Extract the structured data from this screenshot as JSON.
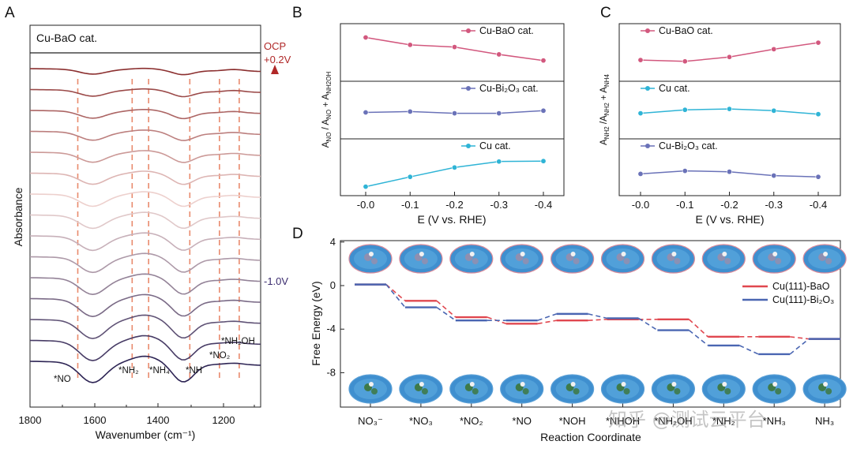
{
  "panels": {
    "A": {
      "letter": "A",
      "box_label": "Cu-BaO cat.",
      "xlabel": "Wavenumber (cm⁻¹)",
      "ylabel": "Absorbance",
      "xticks": [
        "1800",
        "1600",
        "1400",
        "1200"
      ],
      "potential_top": "OCP",
      "potential_mid": "+0.2V",
      "potential_bottom": "-1.0V",
      "annotations": [
        "*NO",
        "*NH₂",
        "*NH₄",
        "*NH",
        "*NO₂",
        "*NH₂OH"
      ],
      "colors": {
        "top": "#8b2f2f",
        "bottom": "#2d2454",
        "dashed": "#e98a6d",
        "arrow_top": "#b02828",
        "arrow_bottom": "#3a2b6e"
      }
    },
    "B": {
      "letter": "B",
      "ylabel": "A_NO / A_NO + A_NH2OH",
      "xlabel": "E (V vs. RHE)",
      "xticks": [
        "-0.0",
        "-0.1",
        "-0.2",
        "-0.3",
        "-0.4"
      ]
    },
    "C": {
      "letter": "C",
      "ylabel": "A_NH2 / A_NH2 + A_NH4",
      "xlabel": "E (V vs. RHE)",
      "xticks": [
        "-0.0",
        "-0.1",
        "-0.2",
        "-0.3",
        "-0.4"
      ]
    },
    "D": {
      "letter": "D",
      "ylabel": "Free Energy (eV)",
      "xlabel": "Reaction Coordinate",
      "yticks": [
        "4",
        "0",
        "-4",
        "-8"
      ],
      "steps": [
        "NO₃⁻",
        "*NO₃",
        "*NO₂",
        "*NO",
        "*NOH",
        "*NHOH",
        "*NH₂OH",
        "*NH₂",
        "*NH₃",
        "NH₃"
      ]
    }
  },
  "watermark": "知乎 @测试云平台",
  "chart_data": [
    {
      "type": "line",
      "title": "",
      "xlabel": "E (V vs. RHE)",
      "ylabel": "A_NO / A_NO + A_NH2OH",
      "x": [
        0.0,
        -0.1,
        -0.2,
        -0.3,
        -0.4
      ],
      "series": [
        {
          "name": "Cu-BaO cat.",
          "color": "#d2587e",
          "values": [
            0.9,
            0.73,
            0.68,
            0.51,
            0.37
          ]
        },
        {
          "name": "Cu-Bi₂O₃ cat.",
          "color": "#6a72b8",
          "values": [
            0.5,
            0.52,
            0.48,
            0.48,
            0.54
          ]
        },
        {
          "name": "Cu cat.",
          "color": "#2fb4d6",
          "values": [
            0.1,
            0.33,
            0.55,
            0.69,
            0.7
          ]
        }
      ]
    },
    {
      "type": "line",
      "title": "",
      "xlabel": "E (V vs. RHE)",
      "ylabel": "A_NH2 / A_NH2 + A_NH4",
      "x": [
        0.0,
        -0.1,
        -0.2,
        -0.3,
        -0.4
      ],
      "series": [
        {
          "name": "Cu-BaO cat.",
          "color": "#d2587e",
          "values": [
            0.38,
            0.35,
            0.45,
            0.63,
            0.78
          ]
        },
        {
          "name": "Cu cat.",
          "color": "#2fb4d6",
          "values": [
            0.48,
            0.56,
            0.58,
            0.54,
            0.46
          ]
        },
        {
          "name": "Cu-Bi₂O₃ cat.",
          "color": "#6a72b8",
          "values": [
            0.4,
            0.47,
            0.45,
            0.36,
            0.33
          ]
        }
      ]
    },
    {
      "type": "line",
      "title": "",
      "xlabel": "Reaction Coordinate",
      "ylabel": "Free Energy (eV)",
      "ylim": [
        -10,
        4
      ],
      "categories": [
        "NO₃⁻",
        "*NO₃",
        "*NO₂",
        "*NO",
        "*NOH",
        "*NHOH",
        "*NH₂OH",
        "*NH₂",
        "*NH₃",
        "NH₃"
      ],
      "legend_position": "right",
      "series": [
        {
          "name": "Cu(111)-BaO",
          "color": "#e0474f",
          "values": [
            0.1,
            -1.4,
            -2.9,
            -3.5,
            -3.2,
            -3.1,
            -3.1,
            -4.7,
            -4.7,
            -4.9
          ]
        },
        {
          "name": "Cu(111)-Bi₂O₃",
          "color": "#4a66b2",
          "values": [
            0.1,
            -2.0,
            -3.2,
            -3.2,
            -2.6,
            -3.0,
            -4.1,
            -5.5,
            -6.3,
            -4.9
          ]
        }
      ]
    }
  ]
}
